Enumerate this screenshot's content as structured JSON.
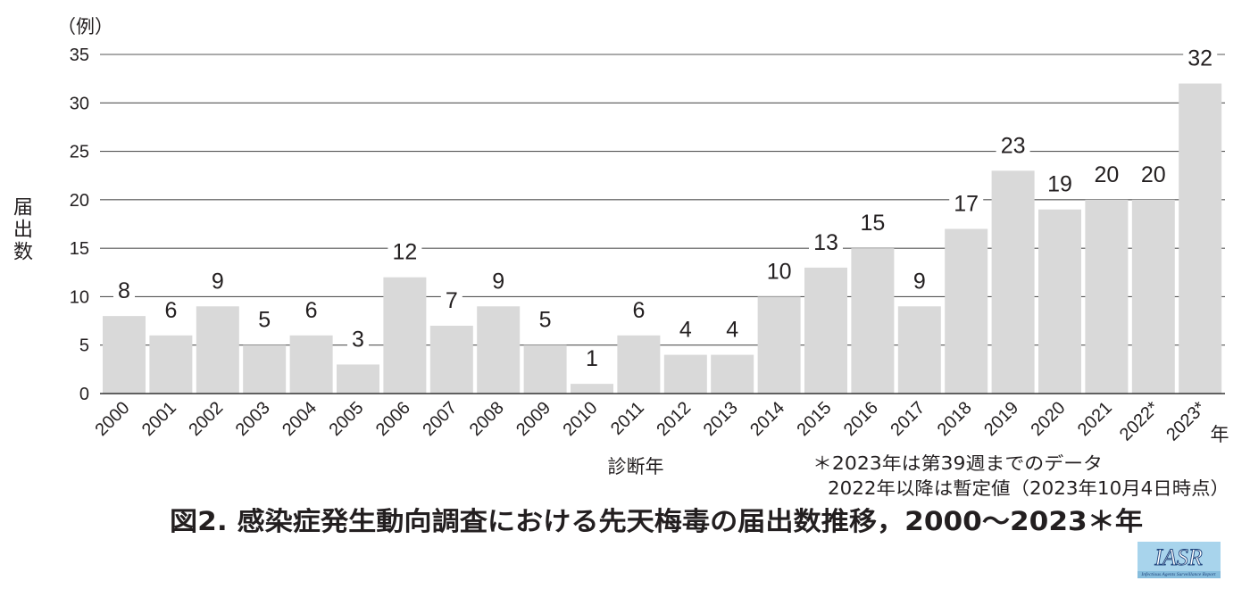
{
  "chart_data": {
    "type": "bar",
    "y_unit_label": "（例）",
    "ylabel": "届出数",
    "xlabel": "診断年",
    "x_unit_suffix": "年",
    "categories": [
      "2000",
      "2001",
      "2002",
      "2003",
      "2004",
      "2005",
      "2006",
      "2007",
      "2008",
      "2009",
      "2010",
      "2011",
      "2012",
      "2013",
      "2014",
      "2015",
      "2016",
      "2017",
      "2018",
      "2019",
      "2020",
      "2021",
      "2022*",
      "2023*"
    ],
    "values": [
      8,
      6,
      9,
      5,
      6,
      3,
      12,
      7,
      9,
      5,
      1,
      6,
      4,
      4,
      10,
      13,
      15,
      9,
      17,
      23,
      19,
      20,
      20,
      32
    ],
    "ylim": [
      0,
      35
    ],
    "yticks": [
      0,
      5,
      10,
      15,
      20,
      25,
      30,
      35
    ],
    "grid": true,
    "data_labels": true,
    "bar_color": "#d9d9d9"
  },
  "notes": [
    "＊2023年は第39週までのデータ",
    "2022年以降は暫定値（2023年10月4日時点）"
  ],
  "title": "図2. 感染症発生動向調査における先天梅毒の届出数推移，2000～2023＊年",
  "logo": {
    "text": "IASR",
    "subtitle": "Infectious Agents Surveillance Report",
    "color": "#a8d4ec"
  }
}
